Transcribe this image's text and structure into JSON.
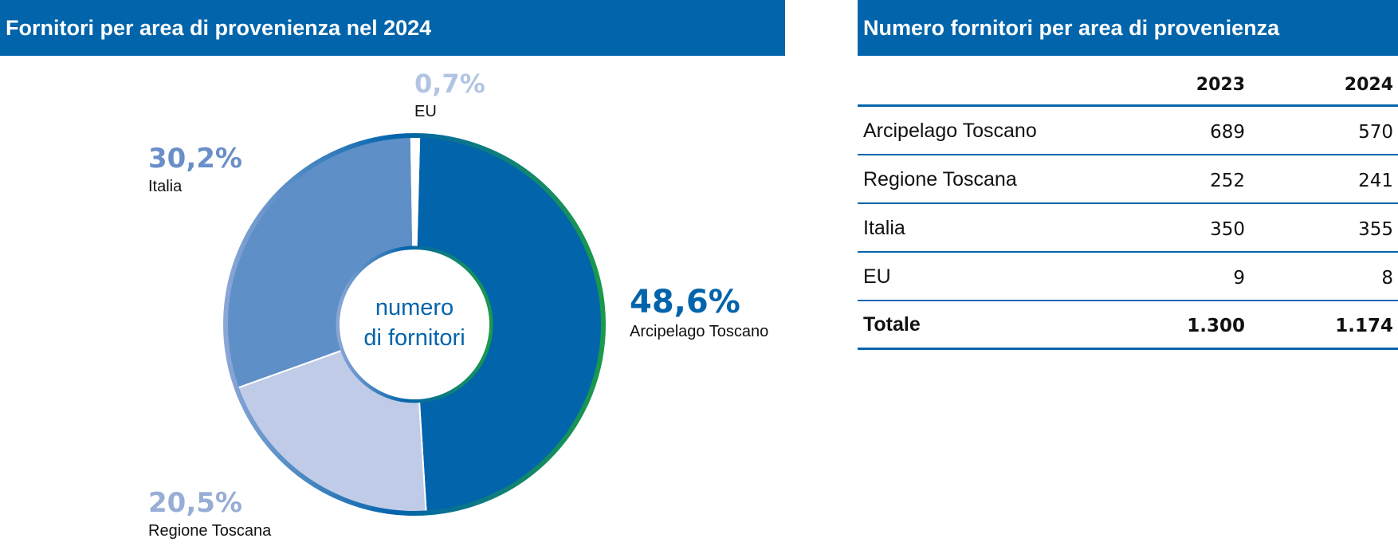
{
  "left_title": "Fornitori per area di provenienza nel 2024",
  "right_title": "Numero fornitori per area di provenienza",
  "chart_data": {
    "type": "pie",
    "title": "Fornitori per area di provenienza nel 2024",
    "center_label": [
      "numero",
      "di fornitori"
    ],
    "slices": [
      {
        "label": "Arcipelago Toscano",
        "value": 48.6,
        "display": "48,6%",
        "color": "#0264ab"
      },
      {
        "label": "Regione Toscana",
        "value": 20.5,
        "display": "20,5%",
        "color": "#c0cbe8"
      },
      {
        "label": "Italia",
        "value": 30.2,
        "display": "30,2%",
        "color": "#5f8fc7"
      },
      {
        "label": "EU",
        "value": 0.7,
        "display": "0,7%",
        "color": "#ffffff"
      }
    ],
    "label_colors": [
      "#0264ab",
      "#97add6",
      "#6a8fc8",
      "#b3c4e3"
    ]
  },
  "table": {
    "header": [
      "",
      "2023",
      "2024"
    ],
    "rows": [
      [
        "Arcipelago Toscano",
        "689",
        "570"
      ],
      [
        "Regione Toscana",
        "252",
        "241"
      ],
      [
        "Italia",
        "350",
        "355"
      ],
      [
        "EU",
        "9",
        "8"
      ]
    ],
    "total": [
      "Totale",
      "1.300",
      "1.174"
    ]
  },
  "colors": {
    "header_bg": "#0264ab",
    "rim_green": "#1a9a4a"
  }
}
